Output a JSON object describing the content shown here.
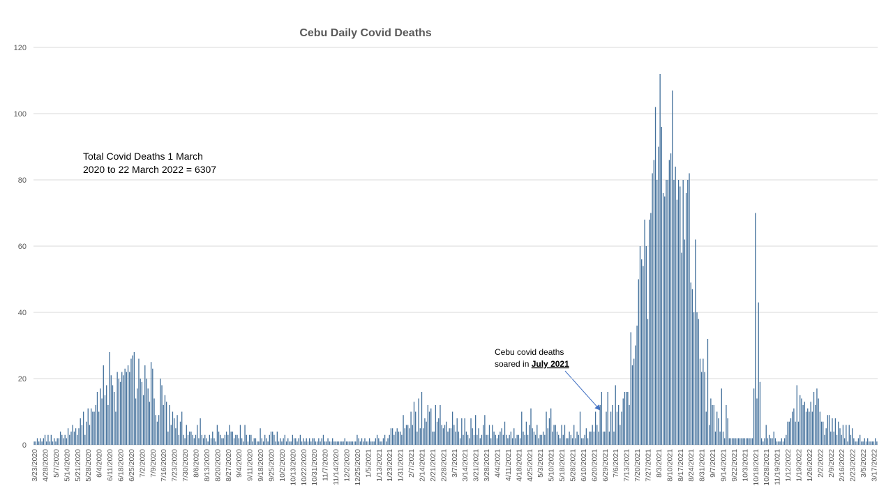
{
  "chart_data": {
    "type": "bar",
    "title": "Cebu Daily Covid Deaths",
    "annotations": [
      {
        "lines": [
          "Total Covid Deaths 1 March",
          "2020 to 22 March 2022 = 6307"
        ]
      },
      {
        "lines": [
          "Cebu covid deaths",
          "soared in"
        ],
        "emphasis": "July 2021"
      }
    ],
    "color": "#44719c",
    "grid": true,
    "ylim": [
      0,
      120
    ],
    "yticks": [
      0,
      20,
      40,
      60,
      80,
      100,
      120
    ],
    "categories": [
      "3/23/2020",
      null,
      null,
      null,
      null,
      null,
      null,
      "4/28/2020",
      null,
      null,
      null,
      null,
      null,
      null,
      "5/7/2020",
      null,
      null,
      null,
      null,
      null,
      null,
      "5/14/2020",
      null,
      null,
      null,
      null,
      null,
      null,
      "5/21/2020",
      null,
      null,
      null,
      null,
      null,
      null,
      "5/28/2020",
      null,
      null,
      null,
      null,
      null,
      null,
      "6/4/2020",
      null,
      null,
      null,
      null,
      null,
      null,
      "6/11/2020",
      null,
      null,
      null,
      null,
      null,
      null,
      "6/18/2020",
      null,
      null,
      null,
      null,
      null,
      null,
      "6/25/2020",
      null,
      null,
      null,
      null,
      null,
      null,
      "7/2/2020",
      null,
      null,
      null,
      null,
      null,
      null,
      "7/9/2020",
      null,
      null,
      null,
      null,
      null,
      null,
      "7/16/2020",
      null,
      null,
      null,
      null,
      null,
      null,
      "7/23/2020",
      null,
      null,
      null,
      null,
      null,
      null,
      "7/30/2020",
      null,
      null,
      null,
      null,
      null,
      null,
      "8/6/2020",
      null,
      null,
      null,
      null,
      null,
      null,
      "8/13/2020",
      null,
      null,
      null,
      null,
      null,
      null,
      "8/20/2020",
      null,
      null,
      null,
      null,
      null,
      null,
      "8/27/2020",
      null,
      null,
      null,
      null,
      null,
      null,
      "9/4/2020",
      null,
      null,
      null,
      null,
      null,
      null,
      "9/11/2020",
      null,
      null,
      null,
      null,
      null,
      null,
      "9/18/2020",
      null,
      null,
      null,
      null,
      null,
      null,
      "9/25/2020",
      null,
      null,
      null,
      null,
      null,
      null,
      "10/2/2020",
      null,
      null,
      null,
      null,
      null,
      null,
      "10/13/2020",
      null,
      null,
      null,
      null,
      null,
      null,
      "10/22/2020",
      null,
      null,
      null,
      null,
      null,
      null,
      "10/31/2020",
      null,
      null,
      null,
      null,
      null,
      null,
      "11/7/2020",
      null,
      null,
      null,
      null,
      null,
      null,
      "11/14/2020",
      null,
      null,
      null,
      null,
      null,
      null,
      "12/2/2020",
      null,
      null,
      null,
      null,
      null,
      null,
      "12/25/2020",
      null,
      null,
      null,
      null,
      null,
      null,
      "1/5/2021",
      null,
      null,
      null,
      null,
      null,
      null,
      "1/13/2021",
      null,
      null,
      null,
      null,
      null,
      null,
      "1/23/2021",
      null,
      null,
      null,
      null,
      null,
      null,
      "1/31/2021",
      null,
      null,
      null,
      null,
      null,
      null,
      "2/7/2021",
      null,
      null,
      null,
      null,
      null,
      null,
      "2/14/2021",
      null,
      null,
      null,
      null,
      null,
      null,
      "2/21/2021",
      null,
      null,
      null,
      null,
      null,
      null,
      "2/28/2021",
      null,
      null,
      null,
      null,
      null,
      null,
      "3/7/2021",
      null,
      null,
      null,
      null,
      null,
      null,
      "3/14/2021",
      null,
      null,
      null,
      null,
      null,
      null,
      "3/21/2021",
      null,
      null,
      null,
      null,
      null,
      null,
      "3/28/2021",
      null,
      null,
      null,
      null,
      null,
      null,
      "4/4/2021",
      null,
      null,
      null,
      null,
      null,
      null,
      "4/11/2021",
      null,
      null,
      null,
      null,
      null,
      null,
      "4/18/2021",
      null,
      null,
      null,
      null,
      null,
      null,
      "4/25/2021",
      null,
      null,
      null,
      null,
      null,
      null,
      "5/3/2021",
      null,
      null,
      null,
      null,
      null,
      null,
      "5/10/2021",
      null,
      null,
      null,
      null,
      null,
      null,
      "5/18/2021",
      null,
      null,
      null,
      null,
      null,
      null,
      "5/28/2021",
      null,
      null,
      null,
      null,
      null,
      null,
      "6/10/2021",
      null,
      null,
      null,
      null,
      null,
      null,
      "6/20/2021",
      null,
      null,
      null,
      null,
      null,
      null,
      "6/29/2021",
      null,
      null,
      null,
      null,
      null,
      null,
      "7/6/2021",
      null,
      null,
      null,
      null,
      null,
      null,
      "7/13/2021",
      null,
      null,
      null,
      null,
      null,
      null,
      "7/20/2021",
      null,
      null,
      null,
      null,
      null,
      null,
      "7/27/2021",
      null,
      null,
      null,
      null,
      null,
      null,
      "8/3/2021",
      null,
      null,
      null,
      null,
      null,
      null,
      "8/10/2021",
      null,
      null,
      null,
      null,
      null,
      null,
      "8/17/2021",
      null,
      null,
      null,
      null,
      null,
      null,
      "8/24/2021",
      null,
      null,
      null,
      null,
      null,
      null,
      "8/31/2021",
      null,
      null,
      null,
      null,
      null,
      null,
      "9/7/2021",
      null,
      null,
      null,
      null,
      null,
      null,
      "9/14/2021",
      null,
      null,
      null,
      null,
      null,
      null,
      "9/22/2021",
      null,
      null,
      null,
      null,
      null,
      null,
      "10/3/2021",
      null,
      null,
      null,
      null,
      null,
      null,
      "10/18/2021",
      null,
      null,
      null,
      null,
      null,
      null,
      "10/28/2021",
      null,
      null,
      null,
      null,
      null,
      null,
      "11/19/2021",
      null,
      null,
      null,
      null,
      null,
      null,
      "1/12/2022",
      null,
      null,
      null,
      null,
      null,
      null,
      "1/19/2022",
      null,
      null,
      null,
      null,
      null,
      null,
      "1/26/2022",
      null,
      null,
      null,
      null,
      null,
      null,
      "2/2/2022",
      null,
      null,
      null,
      null,
      null,
      null,
      "2/9/2022",
      null,
      null,
      null,
      null,
      null,
      null,
      "2/16/2022",
      null,
      null,
      null,
      null,
      null,
      null,
      "2/23/2022",
      null,
      null,
      null,
      null,
      null,
      null,
      "3/5/2022",
      null,
      null,
      null,
      null,
      null,
      null,
      "3/17/2022",
      null,
      null
    ],
    "values": [
      1,
      1,
      2,
      1,
      2,
      1,
      2,
      3,
      1,
      3,
      1,
      3,
      1,
      2,
      1,
      2,
      2,
      4,
      3,
      2,
      3,
      2,
      5,
      3,
      4,
      6,
      4,
      5,
      3,
      5,
      8,
      6,
      10,
      3,
      7,
      11,
      6,
      11,
      10,
      10,
      12,
      16,
      10,
      17,
      14,
      24,
      15,
      18,
      12,
      28,
      21,
      18,
      16,
      10,
      22,
      20,
      19,
      22,
      21,
      23,
      22,
      24,
      22,
      26,
      27,
      28,
      14,
      17,
      26,
      20,
      19,
      15,
      24,
      20,
      17,
      13,
      25,
      23,
      14,
      9,
      7,
      9,
      20,
      18,
      12,
      15,
      13,
      4,
      12,
      6,
      10,
      8,
      5,
      9,
      3,
      7,
      10,
      3,
      2,
      6,
      3,
      4,
      4,
      3,
      2,
      3,
      6,
      2,
      8,
      3,
      2,
      3,
      2,
      1,
      3,
      2,
      4,
      2,
      1,
      6,
      4,
      3,
      2,
      2,
      3,
      4,
      3,
      6,
      4,
      4,
      2,
      3,
      3,
      2,
      6,
      2,
      1,
      6,
      3,
      1,
      3,
      3,
      1,
      2,
      2,
      1,
      1,
      5,
      2,
      1,
      3,
      2,
      1,
      3,
      4,
      4,
      3,
      1,
      4,
      1,
      2,
      1,
      2,
      3,
      1,
      2,
      1,
      1,
      3,
      2,
      2,
      1,
      2,
      3,
      1,
      2,
      1,
      2,
      1,
      2,
      1,
      2,
      2,
      1,
      1,
      2,
      1,
      2,
      3,
      1,
      1,
      2,
      1,
      1,
      2,
      1,
      1,
      1,
      1,
      1,
      1,
      1,
      2,
      1,
      1,
      1,
      1,
      1,
      1,
      1,
      3,
      2,
      1,
      2,
      1,
      2,
      1,
      1,
      2,
      1,
      1,
      1,
      2,
      3,
      2,
      1,
      1,
      2,
      3,
      1,
      2,
      3,
      5,
      5,
      3,
      4,
      5,
      4,
      4,
      3,
      9,
      5,
      6,
      6,
      5,
      10,
      6,
      13,
      10,
      4,
      14,
      5,
      16,
      5,
      8,
      7,
      12,
      10,
      11,
      4,
      4,
      12,
      7,
      8,
      12,
      6,
      5,
      6,
      7,
      4,
      5,
      5,
      10,
      6,
      4,
      8,
      4,
      2,
      8,
      3,
      8,
      4,
      3,
      2,
      8,
      5,
      3,
      9,
      3,
      5,
      2,
      3,
      6,
      9,
      3,
      3,
      6,
      2,
      6,
      4,
      3,
      2,
      3,
      4,
      5,
      3,
      7,
      3,
      2,
      3,
      4,
      2,
      5,
      2,
      3,
      3,
      2,
      10,
      4,
      3,
      7,
      3,
      6,
      11,
      5,
      4,
      3,
      6,
      2,
      3,
      3,
      4,
      3,
      10,
      5,
      8,
      11,
      4,
      6,
      6,
      4,
      3,
      2,
      6,
      3,
      6,
      2,
      2,
      4,
      3,
      2,
      6,
      2,
      4,
      3,
      10,
      2,
      2,
      3,
      5,
      2,
      4,
      4,
      6,
      4,
      10,
      6,
      4,
      12,
      16,
      4,
      4,
      10,
      16,
      4,
      10,
      12,
      4,
      18,
      10,
      12,
      6,
      10,
      14,
      16,
      16,
      16,
      12,
      34,
      24,
      26,
      30,
      36,
      50,
      60,
      56,
      54,
      68,
      60,
      38,
      68,
      70,
      82,
      86,
      102,
      80,
      90,
      112,
      96,
      76,
      75,
      80,
      80,
      86,
      88,
      107,
      80,
      84,
      74,
      80,
      78,
      58,
      80,
      62,
      76,
      80,
      82,
      49,
      47,
      40,
      62,
      40,
      38,
      26,
      22,
      26,
      22,
      10,
      32,
      6,
      14,
      12,
      12,
      4,
      10,
      8,
      4,
      17,
      4,
      2,
      12,
      8,
      2,
      2,
      2,
      2,
      2,
      2,
      2,
      2,
      2,
      2,
      2,
      2,
      2,
      2,
      2,
      2,
      17,
      70,
      14,
      43,
      19,
      2,
      1,
      2,
      6,
      2,
      3,
      2,
      2,
      4,
      2,
      1,
      1,
      1,
      2,
      1,
      2,
      3,
      7,
      7,
      8,
      10,
      11,
      7,
      18,
      7,
      15,
      14,
      12,
      13,
      10,
      11,
      10,
      13,
      10,
      16,
      12,
      17,
      14,
      10,
      7,
      7,
      3,
      5,
      9,
      9,
      4,
      8,
      4,
      8,
      3,
      7,
      5,
      3,
      6,
      2,
      6,
      1,
      6,
      3,
      5,
      2,
      1,
      1,
      2,
      3,
      1,
      1,
      2,
      1,
      2,
      1,
      1,
      1,
      1,
      2,
      1
    ]
  }
}
